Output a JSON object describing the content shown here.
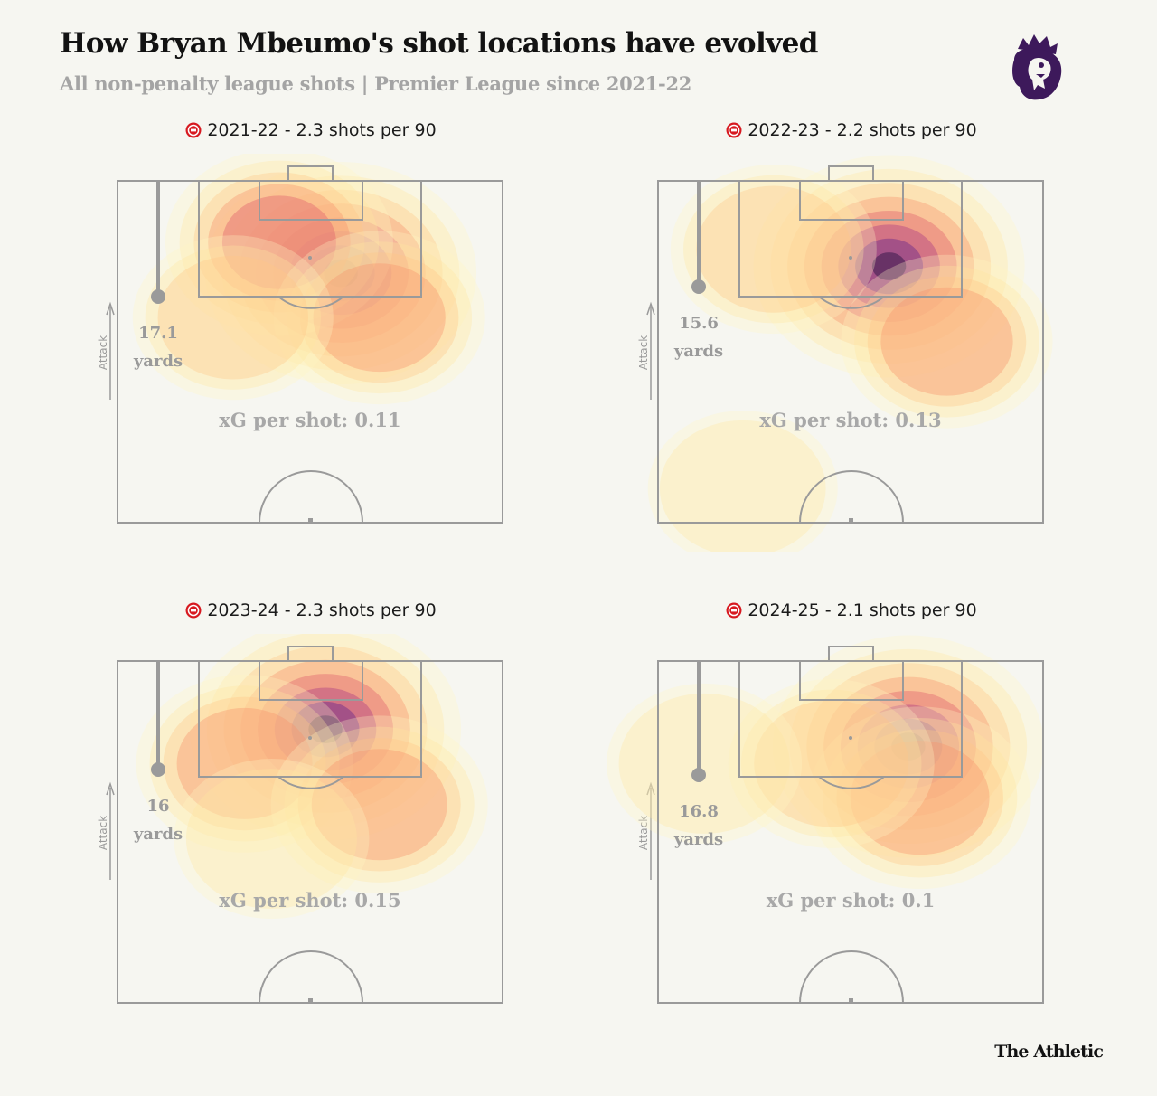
{
  "header": {
    "title": "How Bryan Mbeumo's shot locations have evolved",
    "subtitle": "All non-penalty league shots | Premier League since 2021-22"
  },
  "branding": {
    "publisher": "The Athletic",
    "league_logo_icon": "premier-league-lion-icon",
    "club_icon": "brentford-crest-icon"
  },
  "colors": {
    "background": "#f6f6f1",
    "pitch_lines": "#9a9a9a",
    "muted_text": "#a4a4a4",
    "club_red": "#d71920",
    "league_purple": "#3d195b"
  },
  "chart_data": [
    {
      "type": "heatmap",
      "season": "2021-22",
      "title": "2021-22 - 2.3 shots per 90",
      "shots_per_90": 2.3,
      "avg_distance_value": "17.1",
      "avg_distance_unit": "yards",
      "xg_per_shot_label": "xG per shot: 0.11",
      "xg_per_shot": 0.11,
      "direction_label": "Attack",
      "hotspots": [
        {
          "x": 0.58,
          "y": 0.27,
          "weight": 1.0
        },
        {
          "x": 0.42,
          "y": 0.18,
          "weight": 0.6
        },
        {
          "x": 0.68,
          "y": 0.4,
          "weight": 0.45
        },
        {
          "x": 0.3,
          "y": 0.4,
          "weight": 0.35
        }
      ]
    },
    {
      "type": "heatmap",
      "season": "2022-23",
      "title": "2022-23 - 2.2 shots per 90",
      "shots_per_90": 2.2,
      "avg_distance_value": "15.6",
      "avg_distance_unit": "yards",
      "xg_per_shot_label": "xG per shot: 0.13",
      "xg_per_shot": 0.13,
      "direction_label": "Attack",
      "hotspots": [
        {
          "x": 0.6,
          "y": 0.25,
          "weight": 1.0
        },
        {
          "x": 0.3,
          "y": 0.2,
          "weight": 0.4
        },
        {
          "x": 0.75,
          "y": 0.47,
          "weight": 0.45
        },
        {
          "x": 0.22,
          "y": 0.9,
          "weight": 0.25
        }
      ]
    },
    {
      "type": "heatmap",
      "season": "2023-24",
      "title": "2023-24 - 2.3 shots per 90",
      "shots_per_90": 2.3,
      "avg_distance_value": "16",
      "avg_distance_unit": "yards",
      "xg_per_shot_label": "xG per shot: 0.15",
      "xg_per_shot": 0.15,
      "direction_label": "Attack",
      "hotspots": [
        {
          "x": 0.54,
          "y": 0.2,
          "weight": 1.0
        },
        {
          "x": 0.33,
          "y": 0.3,
          "weight": 0.5
        },
        {
          "x": 0.68,
          "y": 0.42,
          "weight": 0.5
        },
        {
          "x": 0.4,
          "y": 0.52,
          "weight": 0.3
        }
      ]
    },
    {
      "type": "heatmap",
      "season": "2024-25",
      "title": "2024-25 - 2.1 shots per 90",
      "shots_per_90": 2.1,
      "avg_distance_value": "16.8",
      "avg_distance_unit": "yards",
      "xg_per_shot_label": "xG per shot: 0.1",
      "xg_per_shot": 0.1,
      "direction_label": "Attack",
      "hotspots": [
        {
          "x": 0.65,
          "y": 0.25,
          "weight": 1.0
        },
        {
          "x": 0.68,
          "y": 0.4,
          "weight": 0.55
        },
        {
          "x": 0.45,
          "y": 0.3,
          "weight": 0.4
        },
        {
          "x": 0.12,
          "y": 0.3,
          "weight": 0.3
        }
      ]
    }
  ]
}
